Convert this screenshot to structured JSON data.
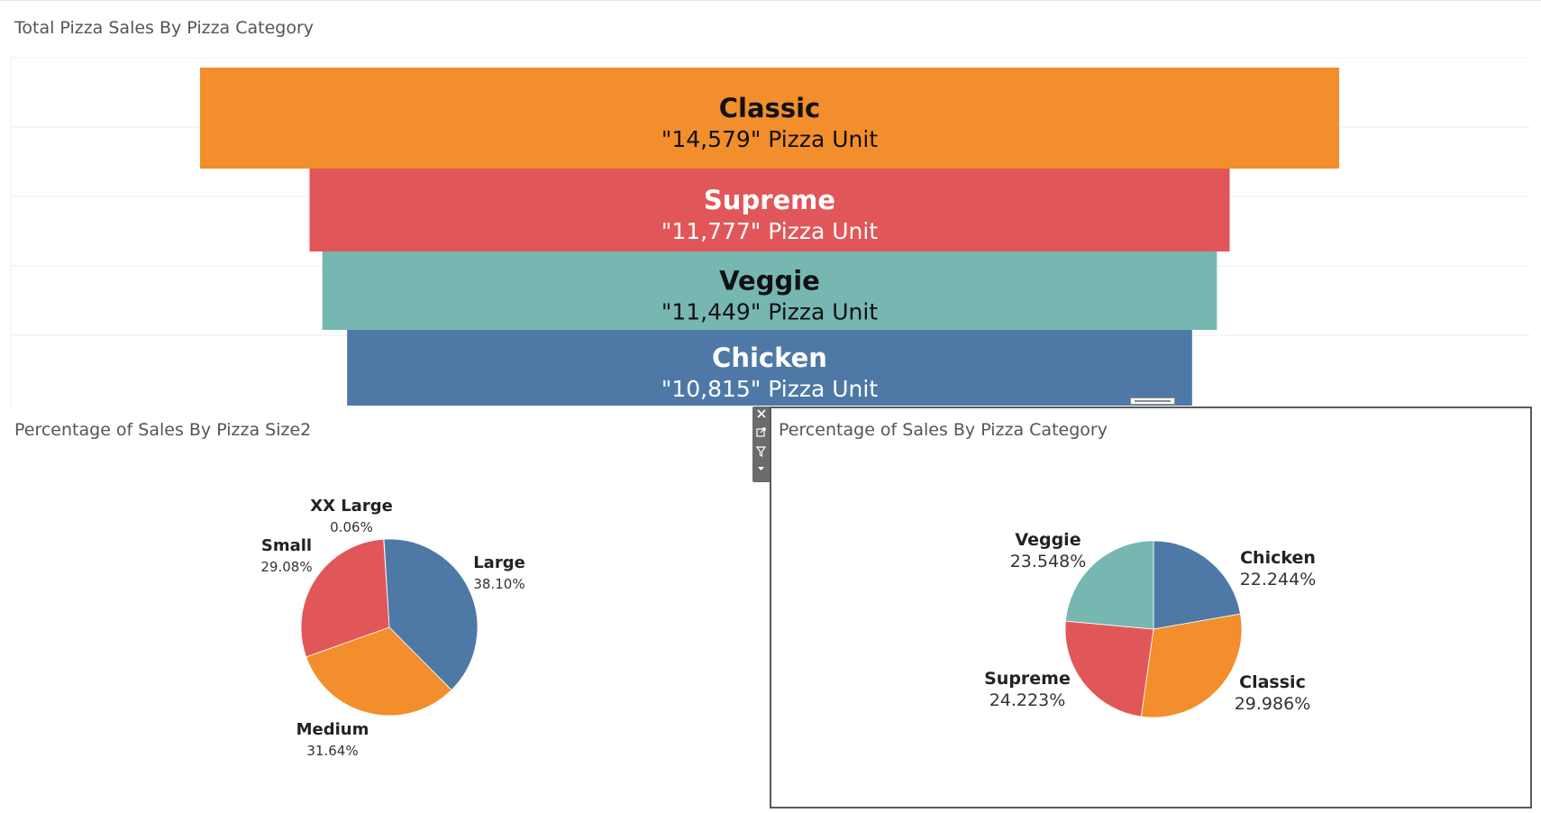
{
  "funnel_title": "Total Pizza Sales By Pizza Category",
  "pie_size_title": "Percentage of Sales By Pizza Size2",
  "pie_cat_title": "Percentage of Sales By Pizza Category",
  "toolbar": {
    "close_icon": "close-icon",
    "popout_icon": "popout-icon",
    "filter_icon": "filter-icon",
    "menu_icon": "dropdown-arrow-icon"
  },
  "chart_data": [
    {
      "type": "bar",
      "subtype": "funnel",
      "title": "Total Pizza Sales By Pizza Category",
      "categories": [
        "Classic",
        "Supreme",
        "Veggie",
        "Chicken"
      ],
      "values": [
        14579,
        11777,
        11449,
        10815
      ],
      "value_labels": [
        "\"14,579\" Pizza Unit",
        "\"11,777\" Pizza Unit",
        "\"11,449\" Pizza Unit",
        "\"10,815\" Pizza Unit"
      ],
      "colors": [
        "#f28e2b",
        "#e15759",
        "#76b7b2",
        "#4e79a7"
      ],
      "label_colors": [
        "#111111",
        "#ffffff",
        "#111111",
        "#ffffff"
      ]
    },
    {
      "type": "pie",
      "title": "Percentage of Sales By Pizza Size2",
      "categories": [
        "Large",
        "Medium",
        "Small",
        "XX Large"
      ],
      "values": [
        38.1,
        31.64,
        29.08,
        0.06
      ],
      "value_labels": [
        "38.10%",
        "31.64%",
        "29.08%",
        "0.06%"
      ],
      "colors": [
        "#4e79a7",
        "#f28e2b",
        "#e15759",
        "#76b7b2"
      ],
      "slice_order": [
        "XX Large",
        "Large",
        "Medium",
        "Small"
      ]
    },
    {
      "type": "pie",
      "title": "Percentage of Sales By Pizza Category",
      "categories": [
        "Chicken",
        "Classic",
        "Supreme",
        "Veggie"
      ],
      "values": [
        22.244,
        29.986,
        24.223,
        23.548
      ],
      "value_labels": [
        "22.244%",
        "29.986%",
        "24.223%",
        "23.548%"
      ],
      "colors": [
        "#4e79a7",
        "#f28e2b",
        "#e15759",
        "#76b7b2"
      ]
    }
  ]
}
